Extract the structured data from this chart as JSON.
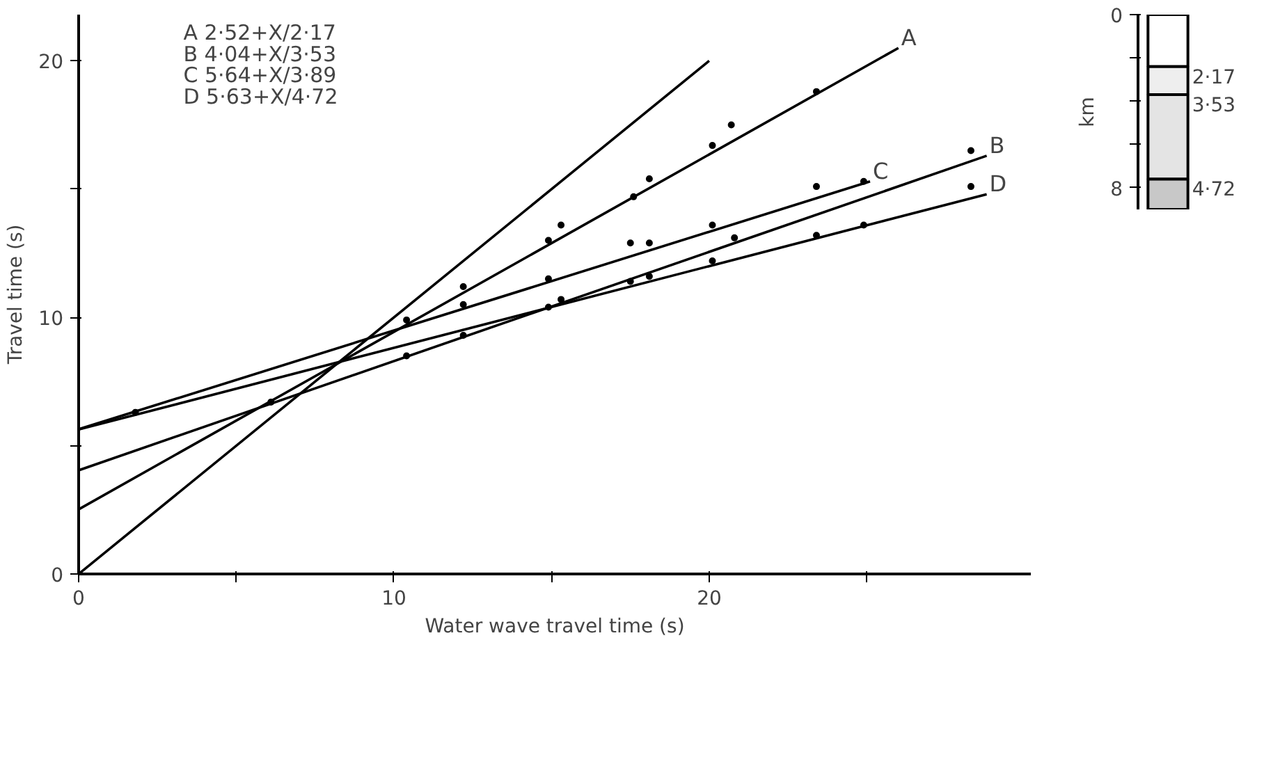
{
  "chart_data": [
    {
      "type": "line",
      "xlabel": "Water wave travel time (s)",
      "ylabel": "Travel time (s)",
      "xlim": [
        0,
        30.2
      ],
      "ylim": [
        0,
        21.8
      ],
      "xticks": [
        0,
        {
          "value": 5,
          "label": null
        },
        10,
        {
          "value": 15,
          "label": null
        },
        20,
        {
          "value": 25,
          "label": null
        }
      ],
      "yticks": [
        0,
        {
          "value": 5,
          "label": null
        },
        10,
        {
          "value": 15,
          "label": null
        },
        20
      ],
      "grid": false,
      "line_style": "solid",
      "marker": "none",
      "annotations": [
        "A 2·52+X/2·17",
        "B 4·04+X/3·53",
        "C 5·64+X/3·89",
        "D 5·63+X/4·72"
      ],
      "series": [
        {
          "type": "line",
          "color": "#000000",
          "x": [
            0,
            20
          ],
          "values": [
            0,
            20
          ]
        },
        {
          "type": "line",
          "name": "A",
          "color": "#000000",
          "x": [
            0,
            26
          ],
          "values": [
            2.52,
            20.5
          ]
        },
        {
          "type": "line",
          "name": "B",
          "color": "#000000",
          "x": [
            0,
            28.8
          ],
          "values": [
            4.04,
            16.3
          ]
        },
        {
          "type": "line",
          "name": "C",
          "color": "#000000",
          "x": [
            0,
            25.1
          ],
          "values": [
            5.64,
            15.3
          ]
        },
        {
          "type": "line",
          "name": "D",
          "color": "#000000",
          "x": [
            0,
            28.8
          ],
          "values": [
            5.63,
            14.8
          ]
        },
        {
          "type": "scatter",
          "color": "#000000",
          "marker": "circle",
          "x": [
            23.4,
            20.7,
            20.1,
            18.1,
            17.6,
            15.3,
            14.9,
            10.4,
            12.2,
            23.4,
            24.9,
            20.1,
            18.1,
            17.5,
            14.9,
            12.2,
            28.3,
            20.8,
            15.3,
            14.9,
            28.3,
            24.9,
            23.4,
            20.1,
            18.1,
            17.5,
            12.2,
            10.4,
            6.1,
            1.8
          ],
          "values": [
            18.8,
            17.5,
            16.7,
            15.4,
            14.7,
            13.6,
            13.0,
            9.9,
            11.2,
            15.1,
            15.3,
            13.6,
            12.9,
            12.9,
            11.5,
            10.5,
            16.5,
            13.1,
            10.7,
            10.4,
            15.1,
            13.6,
            13.2,
            12.2,
            11.6,
            11.4,
            9.3,
            8.5,
            6.7,
            6.3
          ]
        }
      ]
    },
    {
      "type": "bar",
      "stacked": true,
      "categories": [
        null
      ],
      "ylabel": "km",
      "ylim": [
        9,
        0
      ],
      "yticks": [
        0,
        {
          "value": 2,
          "label": null
        },
        {
          "value": 4,
          "label": null
        },
        {
          "value": 6,
          "label": null
        },
        8
      ],
      "grid": false,
      "series": [
        {
          "color": "#ffffff",
          "values": [
            2.4
          ]
        },
        {
          "name": "2·17",
          "color": "#eeeeee",
          "values": [
            1.3
          ]
        },
        {
          "name": "3·53",
          "color": "#e4e4e4",
          "values": [
            3.9
          ]
        },
        {
          "name": "4·72",
          "color": "#c8c8c8",
          "values": [
            1.4
          ]
        }
      ]
    }
  ]
}
